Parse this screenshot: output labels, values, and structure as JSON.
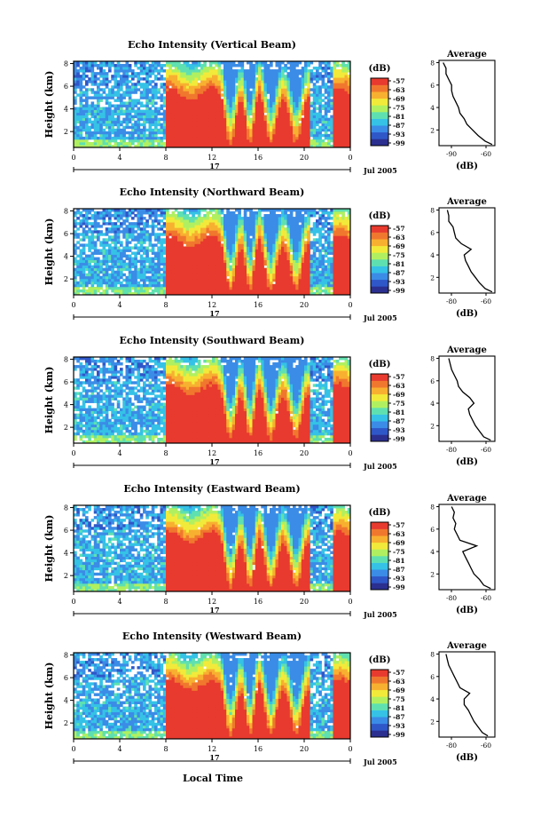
{
  "figure": {
    "date_label": "Jul 2005",
    "day_label": "17",
    "x_title": "Local Time",
    "unit_label": "(dB)",
    "avg_title": "Average",
    "avg_xlabel": "(dB)"
  },
  "colorbar": {
    "ticks": [
      "-57",
      "-63",
      "-69",
      "-75",
      "-81",
      "-87",
      "-93",
      "-99"
    ],
    "colors": [
      "#2b2f8f",
      "#2f57c8",
      "#3b8ce6",
      "#35c2e6",
      "#5fe0b0",
      "#b0f060",
      "#f2ea3a",
      "#f8b030",
      "#f0782e",
      "#e83a2e"
    ]
  },
  "chart_data": [
    {
      "type": "heatmap",
      "title": "Echo Intensity (Vertical Beam)",
      "ylabel": "Height (km)",
      "x_ticks": [
        "0",
        "4",
        "8",
        "12",
        "16",
        "20",
        "0"
      ],
      "y_ticks": [
        "2",
        "4",
        "6",
        "8"
      ],
      "xlim": [
        0,
        24
      ],
      "ylim": [
        0.6,
        8.2
      ],
      "units": "dB",
      "value_range": [
        -99,
        -57
      ],
      "average_profile": {
        "x_ticks": [
          "-90",
          "-60"
        ],
        "y_ticks": [
          "2",
          "4",
          "6",
          "8"
        ],
        "height": [
          0.7,
          1.0,
          1.5,
          2.0,
          2.5,
          3.0,
          3.5,
          4.0,
          4.5,
          5.0,
          5.5,
          6.0,
          6.5,
          7.0,
          7.5,
          8.0
        ],
        "dB": [
          -57,
          -62,
          -67,
          -71,
          -75,
          -77,
          -80,
          -81,
          -83,
          -85,
          -86,
          -86,
          -88,
          -90,
          -90,
          -92
        ]
      }
    },
    {
      "type": "heatmap",
      "title": "Echo Intensity (Northward Beam)",
      "ylabel": "Height (km)",
      "x_ticks": [
        "0",
        "4",
        "8",
        "12",
        "16",
        "20",
        "0"
      ],
      "y_ticks": [
        "2",
        "4",
        "6",
        "8"
      ],
      "xlim": [
        0,
        24
      ],
      "ylim": [
        0.6,
        8.2
      ],
      "units": "dB",
      "value_range": [
        -99,
        -57
      ],
      "average_profile": {
        "x_ticks": [
          "-80",
          "-60"
        ],
        "y_ticks": [
          "2",
          "4",
          "6",
          "8"
        ],
        "height": [
          0.7,
          1.0,
          1.5,
          2.0,
          2.5,
          3.0,
          3.5,
          4.0,
          4.5,
          5.0,
          5.5,
          6.0,
          6.5,
          7.0,
          7.5,
          8.0
        ],
        "dB": [
          -57,
          -62,
          -66,
          -69,
          -72,
          -74,
          -76,
          -77,
          -72,
          -79,
          -83,
          -84,
          -85,
          -88,
          -88,
          -89
        ]
      }
    },
    {
      "type": "heatmap",
      "title": "Echo Intensity (Southward Beam)",
      "ylabel": "Height (km)",
      "x_ticks": [
        "0",
        "4",
        "8",
        "12",
        "16",
        "20",
        "0"
      ],
      "y_ticks": [
        "2",
        "4",
        "6",
        "8"
      ],
      "xlim": [
        0,
        24
      ],
      "ylim": [
        0.6,
        8.2
      ],
      "units": "dB",
      "value_range": [
        -99,
        -57
      ],
      "average_profile": {
        "x_ticks": [
          "-80",
          "-60"
        ],
        "y_ticks": [
          "2",
          "4",
          "6",
          "8"
        ],
        "height": [
          0.7,
          1.0,
          1.5,
          2.0,
          2.5,
          3.0,
          3.5,
          4.0,
          4.5,
          5.0,
          5.5,
          6.0,
          6.5,
          7.0,
          7.5,
          8.0
        ],
        "dB": [
          -58,
          -63,
          -66,
          -69,
          -71,
          -73,
          -74,
          -70,
          -73,
          -78,
          -81,
          -82,
          -84,
          -86,
          -87,
          -88
        ]
      }
    },
    {
      "type": "heatmap",
      "title": "Echo Intensity (Eastward Beam)",
      "ylabel": "Height (km)",
      "x_ticks": [
        "0",
        "4",
        "8",
        "12",
        "16",
        "20",
        "0"
      ],
      "y_ticks": [
        "2",
        "4",
        "6",
        "8"
      ],
      "xlim": [
        0,
        24
      ],
      "ylim": [
        0.6,
        8.2
      ],
      "units": "dB",
      "value_range": [
        -99,
        -57
      ],
      "average_profile": {
        "x_ticks": [
          "-80",
          "-60"
        ],
        "y_ticks": [
          "2",
          "4",
          "6",
          "8"
        ],
        "height": [
          0.7,
          1.0,
          1.5,
          2.0,
          2.5,
          3.0,
          3.5,
          4.0,
          4.5,
          5.0,
          5.5,
          6.0,
          6.5,
          7.0,
          7.5,
          8.0
        ],
        "dB": [
          -58,
          -63,
          -66,
          -70,
          -72,
          -74,
          -76,
          -78,
          -68,
          -80,
          -82,
          -84,
          -83,
          -85,
          -84,
          -86
        ]
      }
    },
    {
      "type": "heatmap",
      "title": "Echo Intensity (Westward Beam)",
      "ylabel": "Height (km)",
      "x_ticks": [
        "0",
        "4",
        "8",
        "12",
        "16",
        "20",
        "0"
      ],
      "y_ticks": [
        "2",
        "4",
        "6",
        "8"
      ],
      "xlim": [
        0,
        24
      ],
      "ylim": [
        0.6,
        8.2
      ],
      "units": "dB",
      "value_range": [
        -99,
        -57
      ],
      "average_profile": {
        "x_ticks": [
          "-80",
          "-60"
        ],
        "y_ticks": [
          "2",
          "4",
          "6",
          "8"
        ],
        "height": [
          0.7,
          1.0,
          1.5,
          2.0,
          2.5,
          3.0,
          3.5,
          4.0,
          4.5,
          5.0,
          5.5,
          6.0,
          6.5,
          7.0,
          7.5,
          8.0
        ],
        "dB": [
          -60,
          -64,
          -67,
          -70,
          -72,
          -74,
          -77,
          -77,
          -73,
          -80,
          -82,
          -84,
          -86,
          -88,
          -89,
          -90
        ]
      }
    }
  ]
}
